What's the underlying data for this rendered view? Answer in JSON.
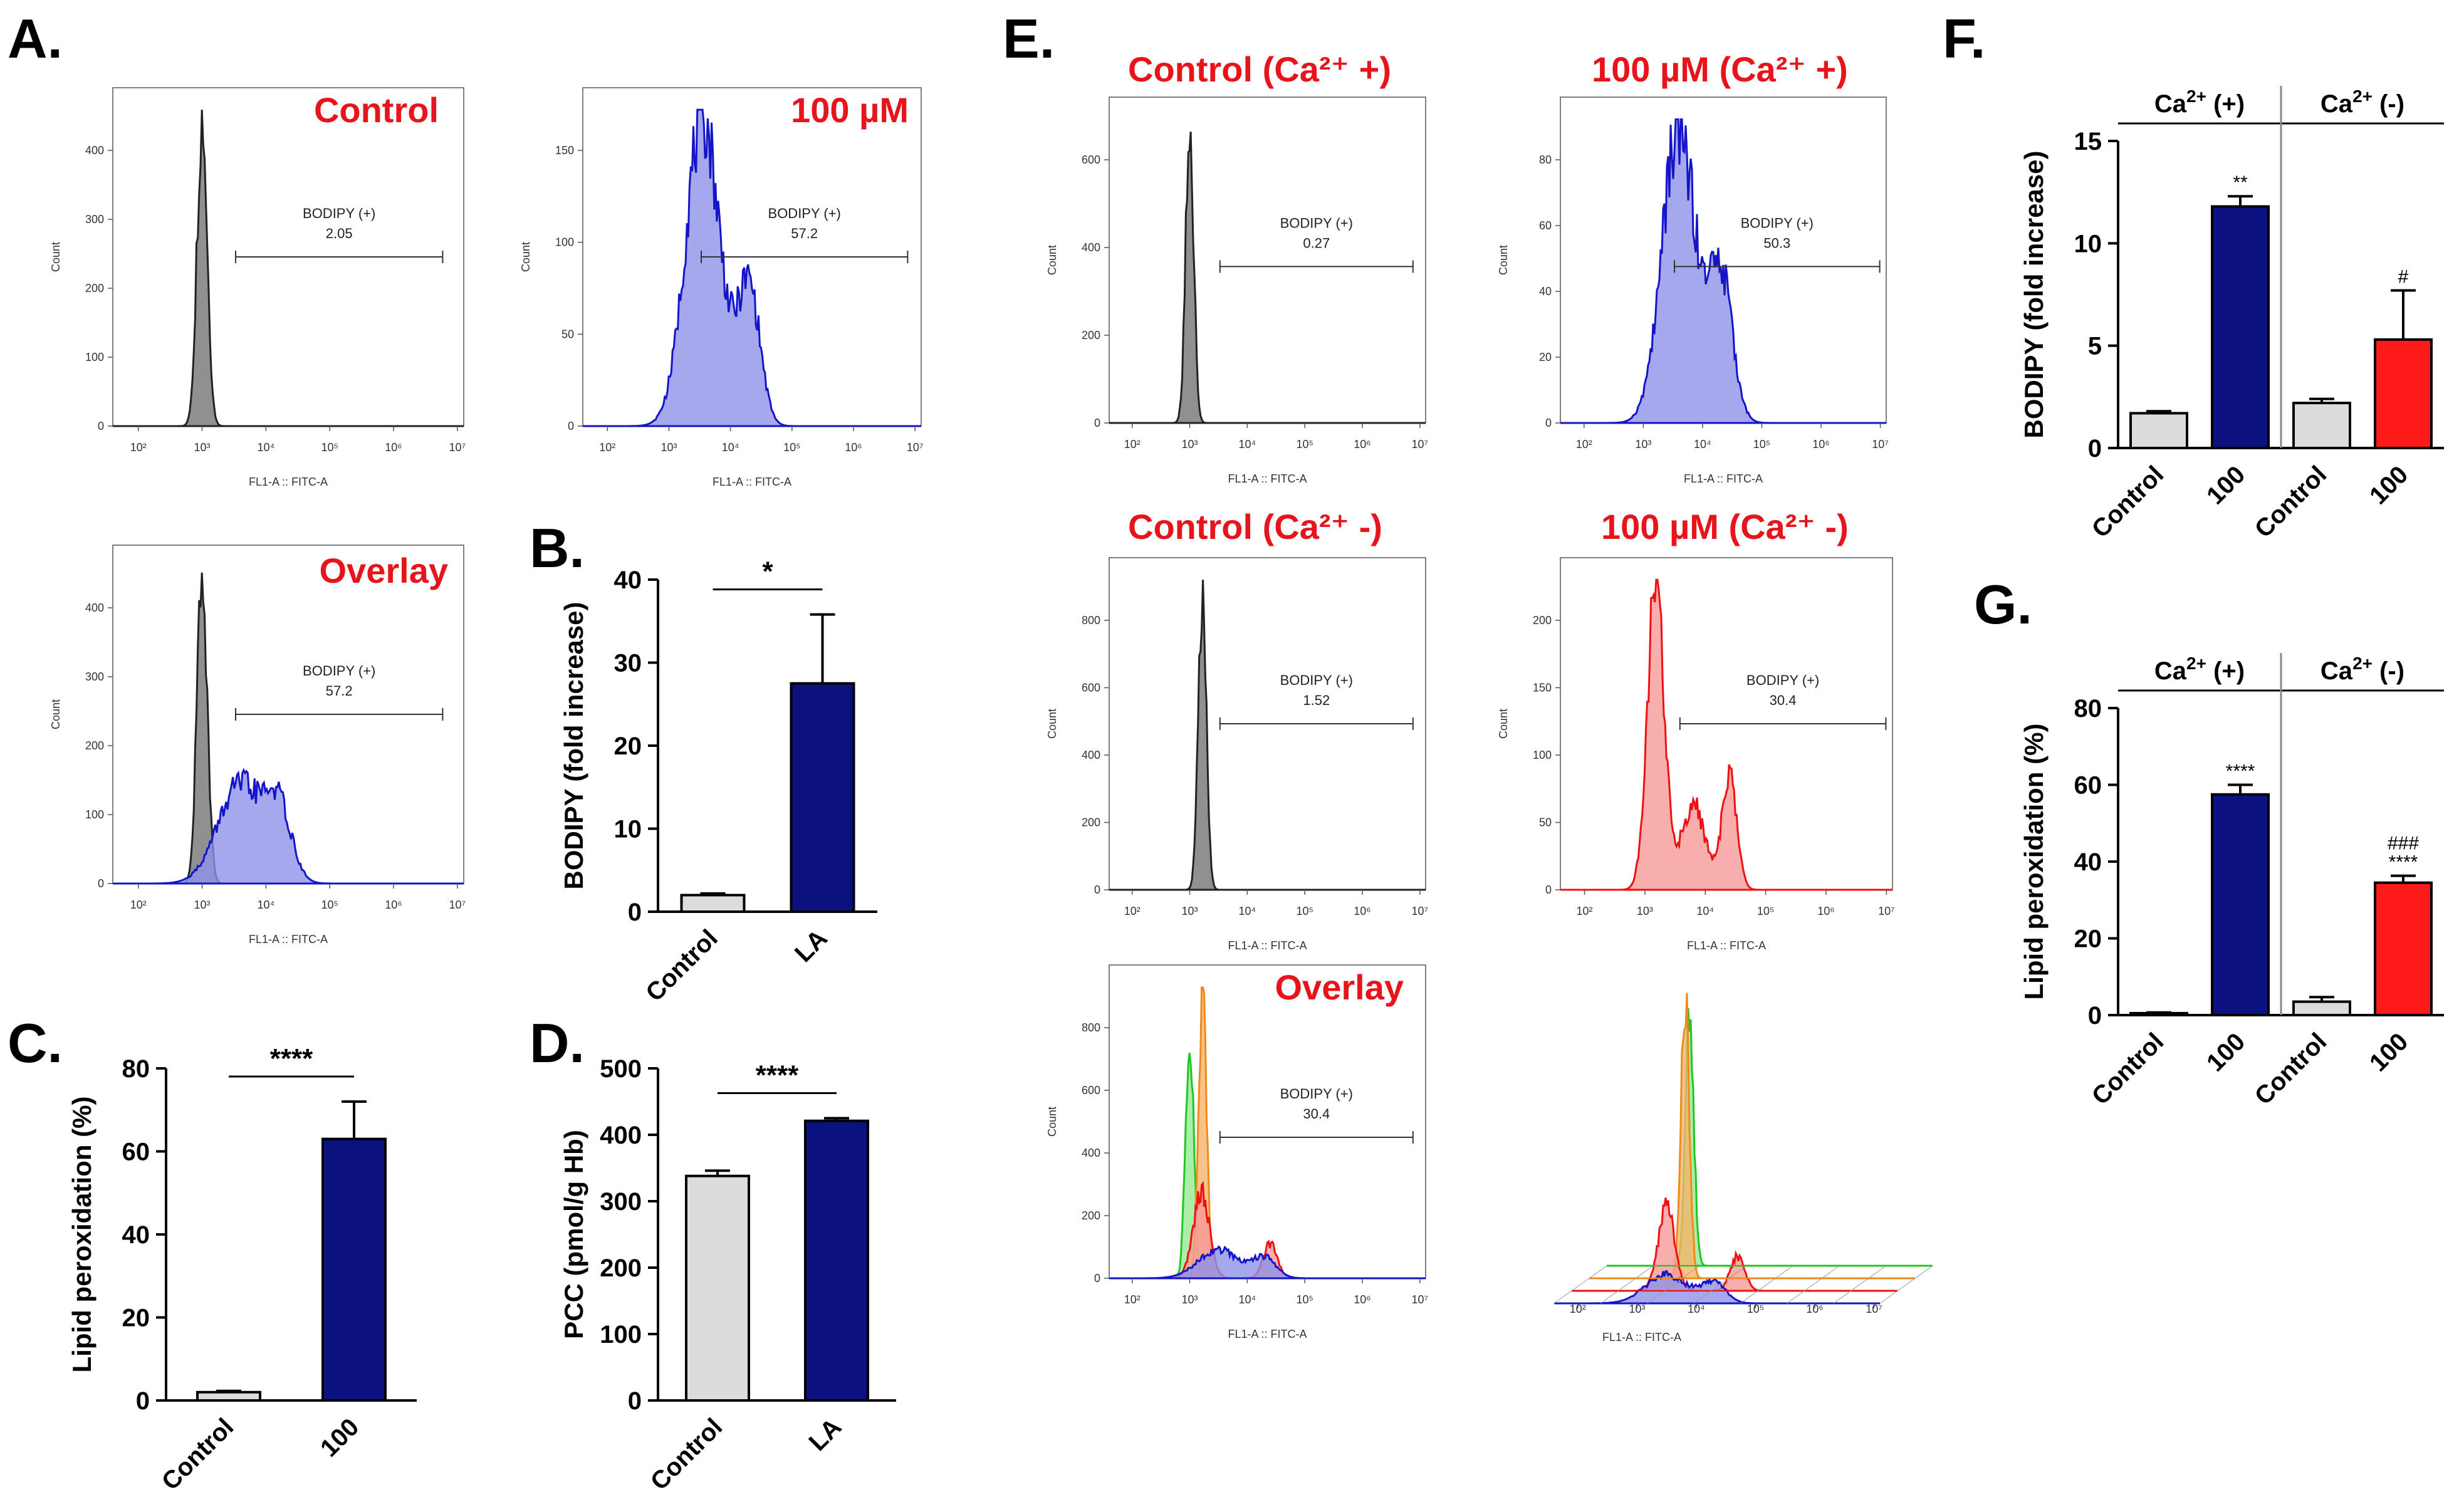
{
  "panel_letters": [
    "A.",
    "B.",
    "C.",
    "D.",
    "E.",
    "F.",
    "G."
  ],
  "colors": {
    "gray_fill": "#8a8a8a",
    "gray_line": "#222222",
    "blue_fill": "#8f92e9",
    "blue_line": "#1414c8",
    "red_fill": "#f79a9a",
    "red_line": "#ee1111",
    "green_fill": "#8ee88e",
    "green_line": "#1ec81e",
    "orange_fill": "#f6b46b",
    "orange_line": "#f08a1e",
    "navy_bar": "#0b1280",
    "light_bar": "#dcdcdc",
    "red_bar": "#ff1a1a",
    "title_red": "#e8141b"
  },
  "histograms": {
    "x_axis_label": "FL1-A :: FITC-A",
    "y_axis_label": "Count",
    "x_ticks": [
      "10²",
      "10³",
      "10⁴",
      "10⁵",
      "10⁶",
      "10⁷"
    ],
    "gate_label": "BODIPY (+)",
    "panels": [
      {
        "key": "a_control",
        "title": "Control",
        "gate_value": "2.05",
        "y_ticks": [
          "0",
          "100",
          "200",
          "300",
          "400"
        ],
        "series": [
          "gray"
        ]
      },
      {
        "key": "a_100",
        "title": "100 µM",
        "gate_value": "57.2",
        "y_ticks": [
          "0",
          "50",
          "100",
          "150"
        ],
        "series": [
          "blue"
        ]
      },
      {
        "key": "a_overlay",
        "title": "Overlay",
        "gate_value": "57.2",
        "y_ticks": [
          "0",
          "100",
          "200",
          "300",
          "400"
        ],
        "series": [
          "gray",
          "blue"
        ]
      },
      {
        "key": "e_ctrl_plus",
        "title": "Control (Ca²⁺ +)",
        "gate_value": "0.27",
        "y_ticks": [
          "0",
          "200",
          "400",
          "600"
        ],
        "series": [
          "gray"
        ]
      },
      {
        "key": "e_100_plus",
        "title": "100 µM (Ca²⁺ +)",
        "gate_value": "50.3",
        "y_ticks": [
          "0",
          "20",
          "40",
          "60",
          "80"
        ],
        "series": [
          "blue"
        ]
      },
      {
        "key": "e_ctrl_minus",
        "title": "Control (Ca²⁺ -)",
        "gate_value": "1.52",
        "y_ticks": [
          "0",
          "200",
          "400",
          "600",
          "800"
        ],
        "series": [
          "gray"
        ]
      },
      {
        "key": "e_100_minus",
        "title": "100 µM (Ca²⁺ -)",
        "gate_value": "30.4",
        "y_ticks": [
          "0",
          "50",
          "100",
          "150",
          "200"
        ],
        "series": [
          "red"
        ]
      },
      {
        "key": "e_overlay",
        "title": "Overlay",
        "gate_value": "30.4",
        "y_ticks": [
          "0",
          "200",
          "400",
          "600",
          "800"
        ],
        "series": [
          "green",
          "orange",
          "red",
          "blue"
        ]
      },
      {
        "key": "e_offset",
        "title": "",
        "gate_value": "",
        "y_ticks": [],
        "series": [
          "green",
          "orange",
          "red",
          "blue"
        ]
      }
    ]
  },
  "chart_data": [
    {
      "id": "B",
      "type": "bar",
      "categories": [
        "Control",
        "LA"
      ],
      "values": [
        2.0,
        27.5
      ],
      "errors": [
        0.2,
        8.3
      ],
      "bar_colors": [
        "light",
        "navy"
      ],
      "ylabel": "BODIPY (fold increase)",
      "ylim": [
        0,
        40
      ],
      "yticks": [
        0,
        10,
        20,
        30,
        40
      ],
      "significance": [
        {
          "from": 0,
          "to": 1,
          "label": "*"
        }
      ]
    },
    {
      "id": "C",
      "type": "bar",
      "categories": [
        "Control",
        "100"
      ],
      "values": [
        2.0,
        63.0
      ],
      "errors": [
        0.3,
        9.0
      ],
      "bar_colors": [
        "light",
        "navy"
      ],
      "ylabel": "Lipid peroxidation (%)",
      "ylim": [
        0,
        80
      ],
      "yticks": [
        0,
        20,
        40,
        60,
        80
      ],
      "significance": [
        {
          "from": 0,
          "to": 1,
          "label": "****"
        }
      ]
    },
    {
      "id": "D",
      "type": "bar",
      "categories": [
        "Control",
        "LA"
      ],
      "values": [
        338,
        421
      ],
      "errors": [
        8,
        4
      ],
      "bar_colors": [
        "light",
        "navy"
      ],
      "ylabel": "PCC (pmol/g Hb)",
      "ylim": [
        0,
        500
      ],
      "yticks": [
        0,
        100,
        200,
        300,
        400,
        500
      ],
      "significance": [
        {
          "from": 0,
          "to": 1,
          "label": "****"
        }
      ]
    },
    {
      "id": "F",
      "type": "bar",
      "categories": [
        "Control",
        "100",
        "Control",
        "100"
      ],
      "values": [
        1.7,
        11.8,
        2.2,
        5.3
      ],
      "errors": [
        0.1,
        0.5,
        0.2,
        2.4
      ],
      "bar_colors": [
        "light",
        "navy",
        "light",
        "red"
      ],
      "ylabel": "BODIPY (fold increase)",
      "ylim": [
        0,
        15
      ],
      "yticks": [
        0,
        5,
        10,
        15
      ],
      "groups": [
        {
          "label_base": "Ca",
          "label_sup": "2+",
          "label_tail": " (+)",
          "span": [
            0,
            1
          ]
        },
        {
          "label_base": "Ca",
          "label_sup": "2+",
          "label_tail": " (-)",
          "span": [
            2,
            3
          ]
        }
      ],
      "bar_annotations": [
        "",
        "**",
        "",
        "#"
      ]
    },
    {
      "id": "G",
      "type": "bar",
      "categories": [
        "Control",
        "100",
        "Control",
        "100"
      ],
      "values": [
        0.5,
        57.5,
        3.5,
        34.5
      ],
      "errors": [
        0.2,
        2.5,
        1.2,
        1.8
      ],
      "bar_colors": [
        "light",
        "navy",
        "light",
        "red"
      ],
      "ylabel": "Lipid peroxidation (%)",
      "ylim": [
        0,
        80
      ],
      "yticks": [
        0,
        20,
        40,
        60,
        80
      ],
      "groups": [
        {
          "label_base": "Ca",
          "label_sup": "2+",
          "label_tail": " (+)",
          "span": [
            0,
            1
          ]
        },
        {
          "label_base": "Ca",
          "label_sup": "2+",
          "label_tail": " (-)",
          "span": [
            2,
            3
          ]
        }
      ],
      "bar_annotations": [
        "",
        "****",
        "",
        "###\n****"
      ]
    }
  ]
}
